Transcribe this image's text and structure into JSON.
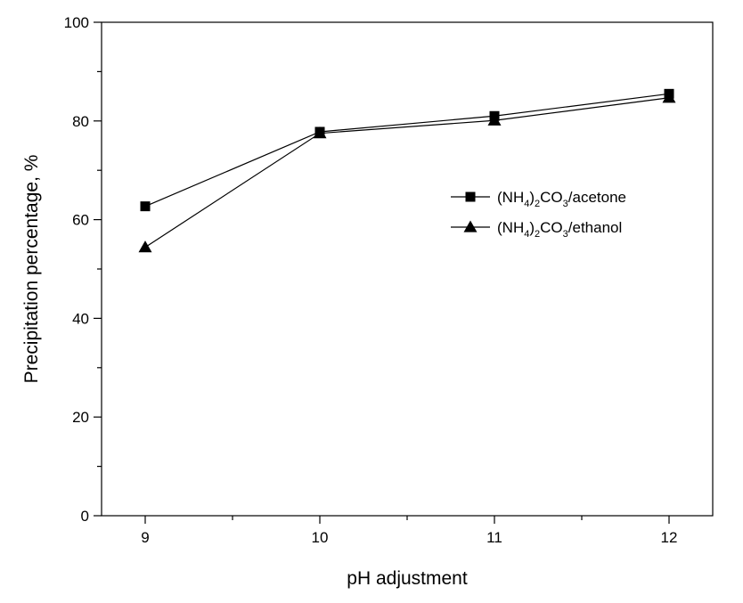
{
  "chart_data": {
    "type": "line",
    "title": "",
    "xlabel": "pH adjustment",
    "ylabel": "Precipitation percentage, %",
    "x": [
      9,
      10,
      11,
      12
    ],
    "x_ticks": [
      "9",
      "10",
      "11",
      "12"
    ],
    "y_ticks": [
      "0",
      "20",
      "40",
      "60",
      "80",
      "100"
    ],
    "xlim": [
      8.75,
      12.25
    ],
    "ylim": [
      0,
      100
    ],
    "grid": false,
    "legend_position": "right",
    "series": [
      {
        "name": "(NH4)2CO3/acetone",
        "legend_parts": [
          "(NH",
          "4",
          ")",
          "2",
          "CO",
          "3",
          "/acetone"
        ],
        "marker": "square",
        "values": [
          62.7,
          77.8,
          81.0,
          85.5
        ]
      },
      {
        "name": "(NH4)2CO3/ethanol",
        "legend_parts": [
          "(NH",
          "4",
          ")",
          "2",
          "CO",
          "3",
          "/ethanol"
        ],
        "marker": "triangle",
        "values": [
          54.4,
          77.5,
          80.1,
          84.7
        ]
      }
    ]
  }
}
